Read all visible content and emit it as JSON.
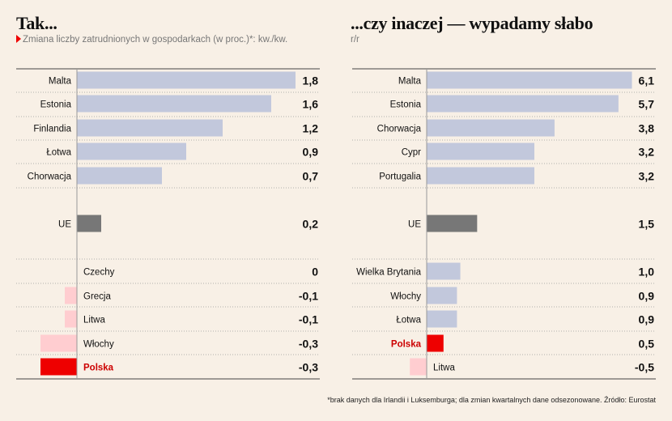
{
  "footnote": "*brak danych dla Irlandii i Luksemburga; dla zmian kwartalnych dane odsezonowane. Źródło: Eurostat",
  "colors": {
    "background": "#f8f0e6",
    "bar_positive": "#c2c8dc",
    "bar_eu": "#777777",
    "bar_negative": "#ffcdd0",
    "bar_polska": "#ee0000",
    "polska_label": "#cc0000",
    "marker": "#ee0000"
  },
  "chart_data": [
    {
      "type": "bar",
      "orientation": "horizontal",
      "title": "Tak...",
      "subtitle": "Zmiana liczby zatrudnionych w gospodarkach (w proc.)*: kw./kw.",
      "categories": [
        "Malta",
        "Estonia",
        "Finlandia",
        "Łotwa",
        "Chorwacja",
        "UE",
        "Czechy",
        "Grecja",
        "Litwa",
        "Włochy",
        "Polska"
      ],
      "values": [
        1.8,
        1.6,
        1.2,
        0.9,
        0.7,
        0.2,
        0,
        -0.1,
        -0.1,
        -0.3,
        -0.3
      ],
      "value_labels": [
        "1,8",
        "1,6",
        "1,2",
        "0,9",
        "0,7",
        "0,2",
        "0",
        "-0,1",
        "-0,1",
        "-0,3",
        "-0,3"
      ],
      "highlight": {
        "UE": "eu",
        "Polska": "polska"
      },
      "xlim": [
        -0.3,
        1.8
      ]
    },
    {
      "type": "bar",
      "orientation": "horizontal",
      "title": "...czy inaczej — wypadamy słabo",
      "subtitle": "r/r",
      "categories": [
        "Malta",
        "Estonia",
        "Chorwacja",
        "Cypr",
        "Portugalia",
        "UE",
        "Wielka Brytania",
        "Włochy",
        "Łotwa",
        "Polska",
        "Litwa"
      ],
      "values": [
        6.1,
        5.7,
        3.8,
        3.2,
        3.2,
        1.5,
        1.0,
        0.9,
        0.9,
        0.5,
        -0.5
      ],
      "value_labels": [
        "6,1",
        "5,7",
        "3,8",
        "3,2",
        "3,2",
        "1,5",
        "1,0",
        "0,9",
        "0,9",
        "0,5",
        "-0,5"
      ],
      "highlight": {
        "UE": "eu",
        "Polska": "polska"
      },
      "xlim": [
        -0.5,
        6.1
      ]
    }
  ]
}
